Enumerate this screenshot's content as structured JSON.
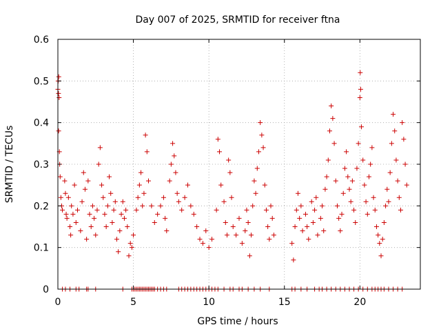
{
  "chart_data": {
    "type": "scatter",
    "title": "Day 007 of 2025, SRMTID for receiver ftna",
    "xlabel": "GPS time / hours",
    "ylabel": "SRMTID / TECUs",
    "xlim": [
      0,
      24
    ],
    "ylim": [
      0,
      0.6
    ],
    "x_ticks": [
      0,
      5,
      10,
      15,
      20
    ],
    "x_tick_labels": [
      "0",
      "5",
      "10",
      "15",
      "20"
    ],
    "y_ticks": [
      0,
      0.1,
      0.2,
      0.3,
      0.4,
      0.5,
      0.6
    ],
    "y_tick_labels": [
      "0",
      "0.1",
      "0.2",
      "0.3",
      "0.4",
      "0.5",
      "0.6"
    ],
    "grid": true,
    "marker": "+",
    "color": "#cc0000",
    "series": [
      {
        "name": "SRMTID",
        "points": [
          [
            0.0,
            0.48
          ],
          [
            0.02,
            0.5
          ],
          [
            0.04,
            0.47
          ],
          [
            0.06,
            0.51
          ],
          [
            0.08,
            0.46
          ],
          [
            0.05,
            0.38
          ],
          [
            0.1,
            0.33
          ],
          [
            0.12,
            0.3
          ],
          [
            0.15,
            0.27
          ],
          [
            0.2,
            0.22
          ],
          [
            0.25,
            0.2
          ],
          [
            0.3,
            0.19
          ],
          [
            0.45,
            0.26
          ],
          [
            0.5,
            0.23
          ],
          [
            0.55,
            0.18
          ],
          [
            0.6,
            0.17
          ],
          [
            0.7,
            0.22
          ],
          [
            0.8,
            0.15
          ],
          [
            0.85,
            0.13
          ],
          [
            0.9,
            0.2
          ],
          [
            1.0,
            0.18
          ],
          [
            1.1,
            0.25
          ],
          [
            1.2,
            0.16
          ],
          [
            1.3,
            0.19
          ],
          [
            1.5,
            0.14
          ],
          [
            1.6,
            0.21
          ],
          [
            1.7,
            0.28
          ],
          [
            1.8,
            0.24
          ],
          [
            1.9,
            0.12
          ],
          [
            2.0,
            0.26
          ],
          [
            2.1,
            0.18
          ],
          [
            2.2,
            0.15
          ],
          [
            2.3,
            0.2
          ],
          [
            2.4,
            0.17
          ],
          [
            2.5,
            0.13
          ],
          [
            2.6,
            0.19
          ],
          [
            2.7,
            0.3
          ],
          [
            2.8,
            0.34
          ],
          [
            2.9,
            0.25
          ],
          [
            3.0,
            0.22
          ],
          [
            3.1,
            0.18
          ],
          [
            3.2,
            0.15
          ],
          [
            3.3,
            0.2
          ],
          [
            3.4,
            0.27
          ],
          [
            3.5,
            0.23
          ],
          [
            3.6,
            0.16
          ],
          [
            3.7,
            0.19
          ],
          [
            3.8,
            0.21
          ],
          [
            3.9,
            0.12
          ],
          [
            4.0,
            0.09
          ],
          [
            4.1,
            0.14
          ],
          [
            4.2,
            0.18
          ],
          [
            4.3,
            0.21
          ],
          [
            4.4,
            0.17
          ],
          [
            4.5,
            0.19
          ],
          [
            4.6,
            0.15
          ],
          [
            4.7,
            0.08
          ],
          [
            4.8,
            0.11
          ],
          [
            4.9,
            0.1
          ],
          [
            5.0,
            0.13
          ],
          [
            5.2,
            0.19
          ],
          [
            5.3,
            0.22
          ],
          [
            5.4,
            0.25
          ],
          [
            5.5,
            0.28
          ],
          [
            5.6,
            0.2
          ],
          [
            5.7,
            0.23
          ],
          [
            5.8,
            0.37
          ],
          [
            5.9,
            0.33
          ],
          [
            6.0,
            0.26
          ],
          [
            6.2,
            0.2
          ],
          [
            6.4,
            0.16
          ],
          [
            6.6,
            0.18
          ],
          [
            6.8,
            0.2
          ],
          [
            7.0,
            0.22
          ],
          [
            7.1,
            0.17
          ],
          [
            7.2,
            0.14
          ],
          [
            7.4,
            0.26
          ],
          [
            7.5,
            0.3
          ],
          [
            7.6,
            0.35
          ],
          [
            7.7,
            0.32
          ],
          [
            7.8,
            0.28
          ],
          [
            7.9,
            0.23
          ],
          [
            8.0,
            0.21
          ],
          [
            8.2,
            0.19
          ],
          [
            8.4,
            0.22
          ],
          [
            8.6,
            0.25
          ],
          [
            8.8,
            0.2
          ],
          [
            9.0,
            0.18
          ],
          [
            9.2,
            0.15
          ],
          [
            9.4,
            0.12
          ],
          [
            9.6,
            0.11
          ],
          [
            9.8,
            0.14
          ],
          [
            10.0,
            0.1
          ],
          [
            10.2,
            0.12
          ],
          [
            10.5,
            0.19
          ],
          [
            10.6,
            0.36
          ],
          [
            10.7,
            0.33
          ],
          [
            10.8,
            0.25
          ],
          [
            11.0,
            0.21
          ],
          [
            11.1,
            0.16
          ],
          [
            11.2,
            0.13
          ],
          [
            11.3,
            0.31
          ],
          [
            11.4,
            0.28
          ],
          [
            11.5,
            0.22
          ],
          [
            11.6,
            0.15
          ],
          [
            11.8,
            0.13
          ],
          [
            12.0,
            0.17
          ],
          [
            12.2,
            0.11
          ],
          [
            12.4,
            0.14
          ],
          [
            12.5,
            0.19
          ],
          [
            12.6,
            0.16
          ],
          [
            12.7,
            0.08
          ],
          [
            12.8,
            0.13
          ],
          [
            12.9,
            0.2
          ],
          [
            13.0,
            0.26
          ],
          [
            13.1,
            0.23
          ],
          [
            13.2,
            0.29
          ],
          [
            13.3,
            0.33
          ],
          [
            13.4,
            0.4
          ],
          [
            13.5,
            0.37
          ],
          [
            13.6,
            0.34
          ],
          [
            13.7,
            0.25
          ],
          [
            13.8,
            0.19
          ],
          [
            13.9,
            0.15
          ],
          [
            14.0,
            0.12
          ],
          [
            14.1,
            0.2
          ],
          [
            14.2,
            0.17
          ],
          [
            14.3,
            0.13
          ],
          [
            15.5,
            0.11
          ],
          [
            15.6,
            0.07
          ],
          [
            15.7,
            0.15
          ],
          [
            15.8,
            0.19
          ],
          [
            15.9,
            0.23
          ],
          [
            16.0,
            0.17
          ],
          [
            16.1,
            0.2
          ],
          [
            16.2,
            0.14
          ],
          [
            16.4,
            0.18
          ],
          [
            16.5,
            0.15
          ],
          [
            16.6,
            0.12
          ],
          [
            16.8,
            0.21
          ],
          [
            16.9,
            0.16
          ],
          [
            17.0,
            0.19
          ],
          [
            17.1,
            0.22
          ],
          [
            17.2,
            0.13
          ],
          [
            17.4,
            0.17
          ],
          [
            17.5,
            0.2
          ],
          [
            17.6,
            0.14
          ],
          [
            17.7,
            0.24
          ],
          [
            17.8,
            0.27
          ],
          [
            17.9,
            0.31
          ],
          [
            18.0,
            0.38
          ],
          [
            18.1,
            0.44
          ],
          [
            18.2,
            0.41
          ],
          [
            18.3,
            0.35
          ],
          [
            18.4,
            0.26
          ],
          [
            18.5,
            0.2
          ],
          [
            18.6,
            0.17
          ],
          [
            18.7,
            0.14
          ],
          [
            18.8,
            0.18
          ],
          [
            18.9,
            0.23
          ],
          [
            19.0,
            0.29
          ],
          [
            19.1,
            0.33
          ],
          [
            19.2,
            0.27
          ],
          [
            19.3,
            0.24
          ],
          [
            19.4,
            0.21
          ],
          [
            19.5,
            0.26
          ],
          [
            19.6,
            0.19
          ],
          [
            19.7,
            0.16
          ],
          [
            19.8,
            0.29
          ],
          [
            19.9,
            0.35
          ],
          [
            20.0,
            0.46
          ],
          [
            20.02,
            0.52
          ],
          [
            20.05,
            0.48
          ],
          [
            20.1,
            0.39
          ],
          [
            20.2,
            0.31
          ],
          [
            20.3,
            0.25
          ],
          [
            20.4,
            0.21
          ],
          [
            20.5,
            0.18
          ],
          [
            20.6,
            0.27
          ],
          [
            20.7,
            0.3
          ],
          [
            20.8,
            0.34
          ],
          [
            20.9,
            0.22
          ],
          [
            21.0,
            0.19
          ],
          [
            21.1,
            0.15
          ],
          [
            21.2,
            0.13
          ],
          [
            21.3,
            0.11
          ],
          [
            21.4,
            0.08
          ],
          [
            21.5,
            0.12
          ],
          [
            21.6,
            0.16
          ],
          [
            21.7,
            0.2
          ],
          [
            21.8,
            0.24
          ],
          [
            21.9,
            0.21
          ],
          [
            22.0,
            0.28
          ],
          [
            22.1,
            0.35
          ],
          [
            22.2,
            0.42
          ],
          [
            22.3,
            0.38
          ],
          [
            22.4,
            0.31
          ],
          [
            22.5,
            0.26
          ],
          [
            22.6,
            0.22
          ],
          [
            22.7,
            0.19
          ],
          [
            22.8,
            0.4
          ],
          [
            22.9,
            0.36
          ],
          [
            23.0,
            0.3
          ],
          [
            23.1,
            0.25
          ]
        ],
        "zero_points_x": [
          0.3,
          0.5,
          0.8,
          1.2,
          1.4,
          1.9,
          2.0,
          2.5,
          4.3,
          4.9,
          5.0,
          5.1,
          5.2,
          5.3,
          5.4,
          5.5,
          5.6,
          5.7,
          5.8,
          5.9,
          6.0,
          6.1,
          6.2,
          6.3,
          6.4,
          6.6,
          6.8,
          7.0,
          7.2,
          8.0,
          8.2,
          8.4,
          8.6,
          8.8,
          9.0,
          9.2,
          9.4,
          9.6,
          9.8,
          10.0,
          10.2,
          10.4,
          10.6,
          11.0,
          11.4,
          11.6,
          12.0,
          12.2,
          12.6,
          13.0,
          13.4,
          14.0,
          15.5,
          15.7,
          16.1,
          16.5,
          17.0,
          17.3,
          17.5,
          17.8,
          18.1,
          18.4,
          18.7,
          19.0,
          19.3,
          19.6,
          19.9,
          20.2,
          20.5,
          20.8,
          21.0,
          21.2,
          21.4,
          21.6,
          21.9,
          22.2,
          22.5,
          22.8
        ]
      }
    ]
  }
}
